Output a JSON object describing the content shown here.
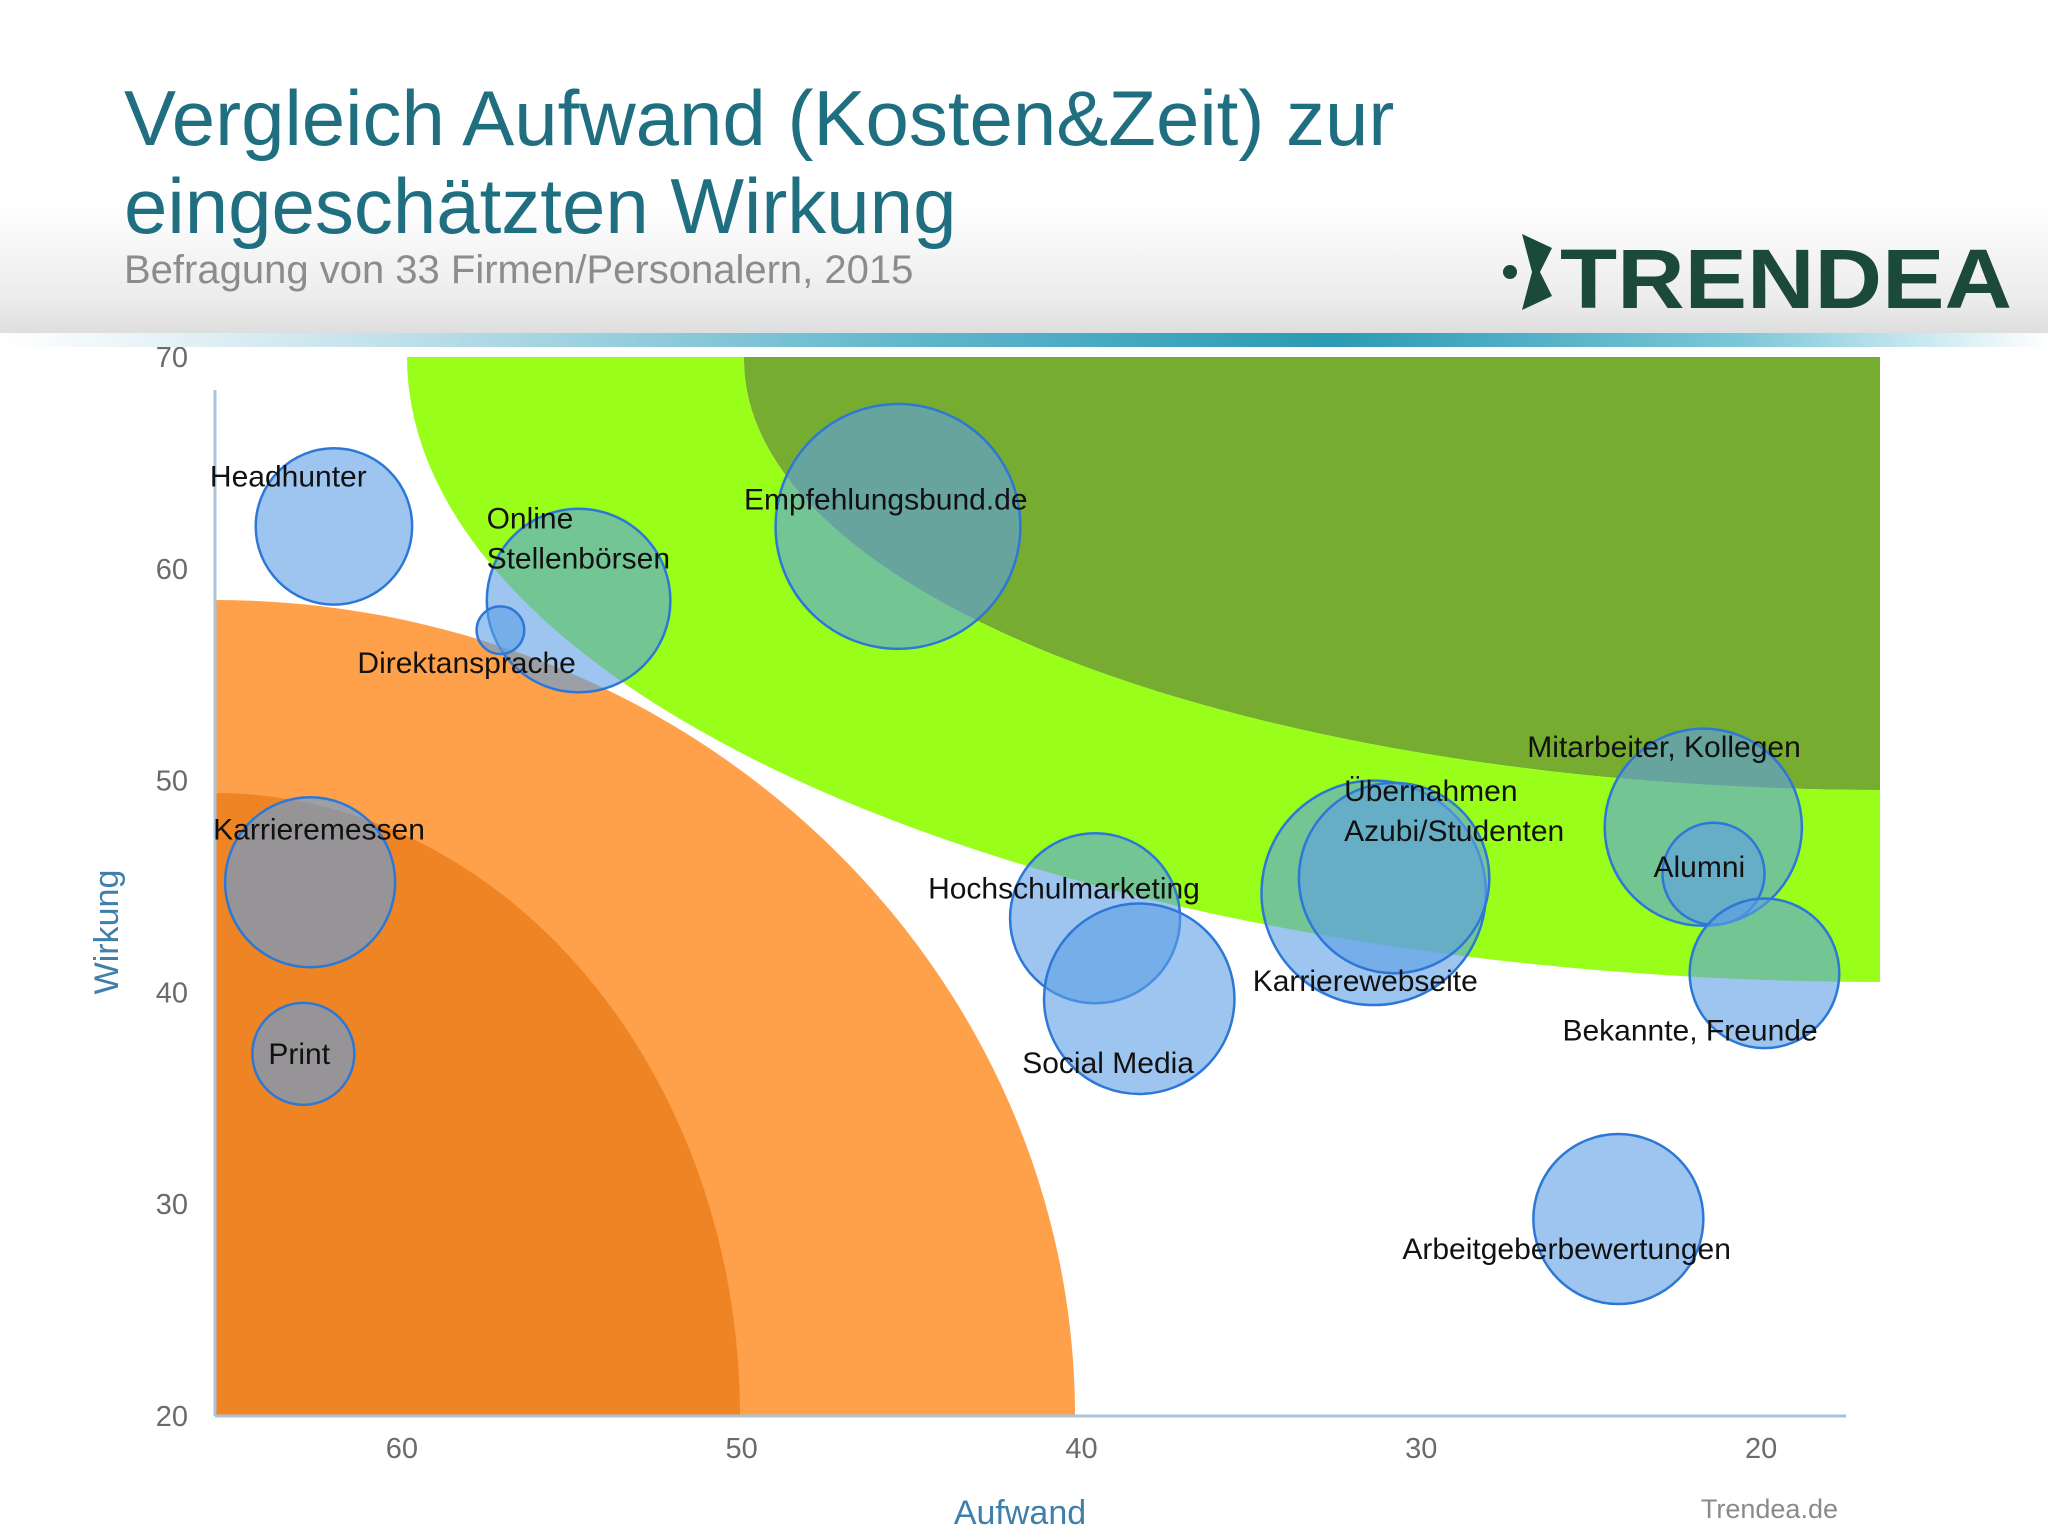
{
  "header": {
    "title": "Vergleich Aufwand (Kosten&Zeit) zur eingeschätzten Wirkung",
    "subtitle": "Befragung von 33 Firmen/Personalern, 2015",
    "logo_text": "TRENDEA"
  },
  "footer": {
    "source": "Trendea.de"
  },
  "colors": {
    "title": "#1f6f80",
    "logo": "#1c4a3a",
    "bubble_fill": "#5b9ee6",
    "bubble_stroke": "#2d78d6",
    "zone_light_orange": "#ffa04a",
    "zone_dark_orange": "#ef8424",
    "zone_light_green": "#99ff1a",
    "zone_dark_green": "#6aa51e"
  },
  "chart_data": {
    "type": "scatter",
    "title": "Vergleich Aufwand (Kosten&Zeit) zur eingeschätzten Wirkung",
    "subtitle": "Befragung von 33 Firmen/Personalern, 2015",
    "xlabel": "Aufwand",
    "ylabel": "Wirkung",
    "xlim": [
      65.5,
      16.5
    ],
    "x_reversed": true,
    "ylim": [
      20,
      70
    ],
    "x_ticks": [
      60,
      50,
      40,
      30,
      20
    ],
    "y_ticks": [
      20,
      30,
      40,
      50,
      60,
      70
    ],
    "grid": false,
    "legend": "none",
    "bubble_size_unit": "relative radius",
    "background_zones": [
      "dark orange quarter circle bottom-left",
      "light orange quarter circle bottom-left",
      "light green arc band top-right",
      "dark green arc band top-right"
    ],
    "points": [
      {
        "label": "Headhunter",
        "x": 62,
        "y": 62,
        "size": 2.3
      },
      {
        "label": "Online Stellenbörsen",
        "x": 54.8,
        "y": 58.5,
        "size": 2.7
      },
      {
        "label": "Direktansprache",
        "x": 57.1,
        "y": 57.1,
        "size": 0.7
      },
      {
        "label": "Empfehlungsbund.de",
        "x": 45.4,
        "y": 62,
        "size": 3.6
      },
      {
        "label": "Karrieremessen",
        "x": 62.7,
        "y": 45.2,
        "size": 2.5
      },
      {
        "label": "Print",
        "x": 62.9,
        "y": 37.1,
        "size": 1.5
      },
      {
        "label": "Hochschulmarketing",
        "x": 39.6,
        "y": 43.5,
        "size": 2.5
      },
      {
        "label": "Social Media",
        "x": 38.3,
        "y": 39.7,
        "size": 2.8
      },
      {
        "label": "Karrierewebseite",
        "x": 31.4,
        "y": 44.7,
        "size": 3.3
      },
      {
        "label": "Übernahmen Azubi/Studenten",
        "x": 30.8,
        "y": 45.4,
        "size": 2.8
      },
      {
        "label": "Mitarbeiter, Kollegen",
        "x": 21.7,
        "y": 47.8,
        "size": 2.9
      },
      {
        "label": "Alumni",
        "x": 21.4,
        "y": 45.6,
        "size": 1.5
      },
      {
        "label": "Bekannte, Freunde",
        "x": 19.9,
        "y": 40.9,
        "size": 2.2
      },
      {
        "label": "Arbeitgeberbewertungen",
        "x": 24.2,
        "y": 29.3,
        "size": 2.5
      }
    ]
  }
}
